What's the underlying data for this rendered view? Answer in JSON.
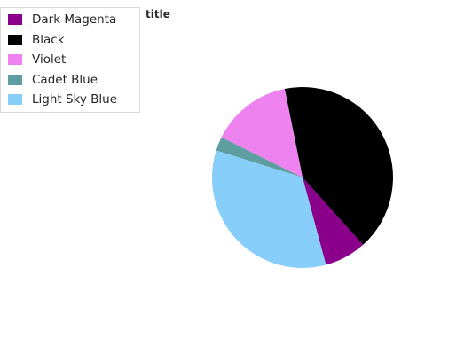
{
  "chart_data": {
    "type": "pie",
    "title": "title",
    "legend_position": "top-left",
    "categories": [
      "Dark Magenta",
      "Black",
      "Violet",
      "Cadet Blue",
      "Light Sky Blue"
    ],
    "values": [
      7.5,
      41.5,
      14.5,
      2.5,
      34.0
    ],
    "colors": [
      "#8b008b",
      "#000000",
      "#ee82ee",
      "#5f9ea0",
      "#87cefa"
    ]
  }
}
